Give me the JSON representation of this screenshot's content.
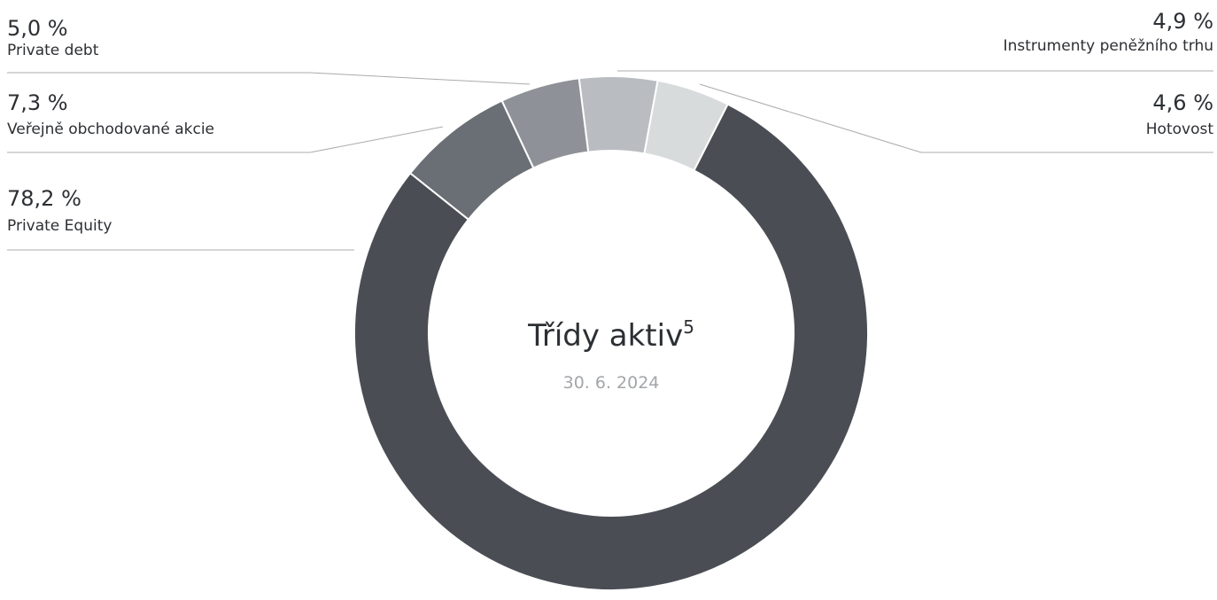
{
  "chart_data": {
    "type": "donut",
    "title": "Třídy aktiv",
    "title_footnote": "5",
    "subtitle": "30. 6. 2024",
    "categories": [
      "Private Equity",
      "Veřejně obchodované akcie",
      "Private debt",
      "Instrumenty peněžního trhu",
      "Hotovost"
    ],
    "values": [
      78.2,
      7.3,
      5.0,
      4.9,
      4.6
    ],
    "value_labels": [
      "78,2 %",
      "7,3 %",
      "5,0 %",
      "4,9 %",
      "4,6 %"
    ],
    "colors": [
      "#4a4e54",
      "#6a6f75",
      "#8e9298",
      "#b9bcc0",
      "#d8dbdc"
    ]
  }
}
